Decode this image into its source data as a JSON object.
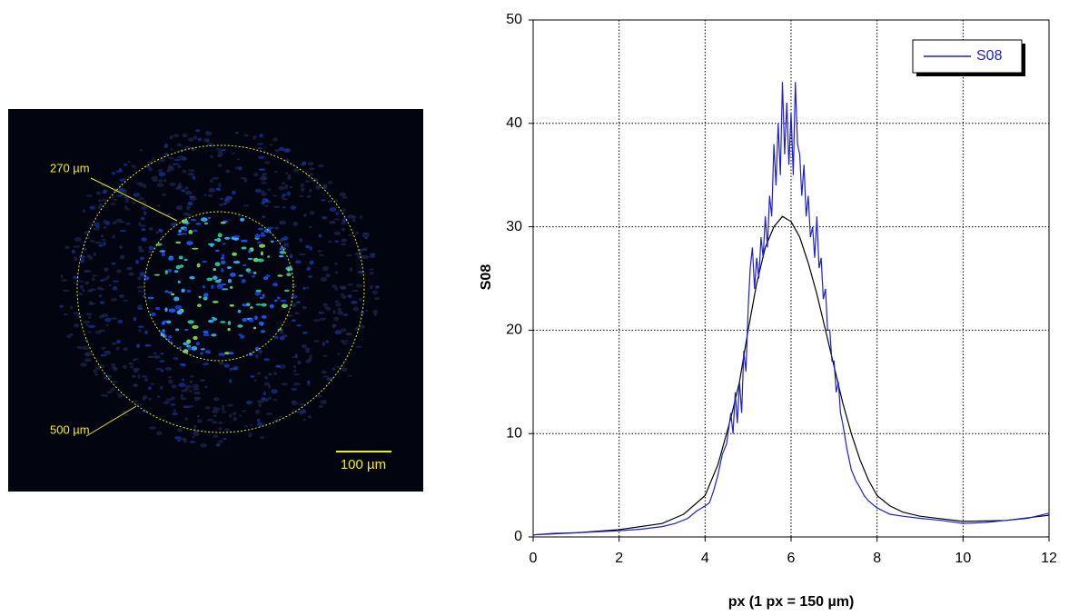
{
  "image": {
    "inner_label": "270 µm",
    "outer_label": "500 µm",
    "scale_label": "100 µm"
  },
  "chart_data": {
    "type": "line",
    "x_label": "px (1 px = 150 µm)",
    "y_label": "S08",
    "xlim": [
      0,
      12
    ],
    "xticks": [
      0,
      2,
      4,
      6,
      8,
      10,
      12
    ],
    "ylim": [
      0,
      50
    ],
    "yticks": [
      0,
      10,
      20,
      30,
      40,
      50
    ],
    "grid": true,
    "legend": "upper right",
    "series": [
      {
        "name": "S08",
        "color": "#1f1fd0",
        "x": [
          0,
          0.5,
          1,
          1.5,
          2,
          2.5,
          3,
          3.3,
          3.6,
          3.8,
          4,
          4.1,
          4.2,
          4.3,
          4.4,
          4.5,
          4.6,
          4.65,
          4.7,
          4.75,
          4.8,
          4.85,
          4.9,
          4.95,
          5,
          5.05,
          5.1,
          5.15,
          5.2,
          5.25,
          5.3,
          5.35,
          5.4,
          5.45,
          5.5,
          5.55,
          5.6,
          5.65,
          5.7,
          5.75,
          5.8,
          5.85,
          5.9,
          5.95,
          6,
          6.05,
          6.1,
          6.15,
          6.2,
          6.25,
          6.3,
          6.35,
          6.4,
          6.45,
          6.5,
          6.55,
          6.6,
          6.65,
          6.7,
          6.75,
          6.8,
          6.85,
          6.9,
          6.95,
          7,
          7.05,
          7.1,
          7.15,
          7.2,
          7.3,
          7.4,
          7.5,
          7.6,
          7.7,
          7.8,
          8,
          8.3,
          8.6,
          9,
          9.5,
          10,
          10.5,
          11,
          11.5,
          12
        ],
        "values": [
          0.2,
          0.35,
          0.4,
          0.5,
          0.6,
          0.75,
          1.0,
          1.3,
          1.8,
          2.5,
          3.0,
          3.3,
          4.5,
          6,
          8,
          9,
          12,
          10,
          14,
          11,
          15,
          12,
          18,
          16,
          22,
          26,
          28,
          24,
          27,
          25,
          29,
          27,
          31,
          28,
          33,
          31,
          38,
          34,
          40,
          35,
          44,
          37,
          42,
          36,
          41,
          35,
          44,
          38,
          37,
          33,
          36,
          31,
          33,
          29,
          30,
          27,
          31,
          26,
          27,
          23,
          24,
          20,
          20,
          17,
          17,
          14,
          15,
          12,
          11,
          8.5,
          6.5,
          5.5,
          4.8,
          4,
          3.5,
          2.8,
          2.2,
          2.0,
          1.8,
          1.6,
          1.3,
          1.4,
          1.6,
          1.8,
          2.3
        ]
      },
      {
        "color": "#000000",
        "x": [
          0,
          1,
          2,
          3,
          3.5,
          4,
          4.3,
          4.6,
          4.8,
          5,
          5.2,
          5.4,
          5.6,
          5.8,
          6,
          6.2,
          6.4,
          6.6,
          6.8,
          7,
          7.2,
          7.4,
          7.6,
          7.8,
          8,
          8.3,
          8.6,
          9,
          10,
          11,
          12
        ],
        "values": [
          0.2,
          0.4,
          0.7,
          1.3,
          2.2,
          4,
          7,
          11.5,
          15,
          20,
          24.5,
          28,
          30,
          31,
          30.5,
          29,
          26.5,
          23.5,
          20,
          16.5,
          13,
          10,
          7.5,
          5.5,
          4,
          3,
          2.4,
          2.0,
          1.5,
          1.6,
          2.1
        ]
      }
    ]
  }
}
